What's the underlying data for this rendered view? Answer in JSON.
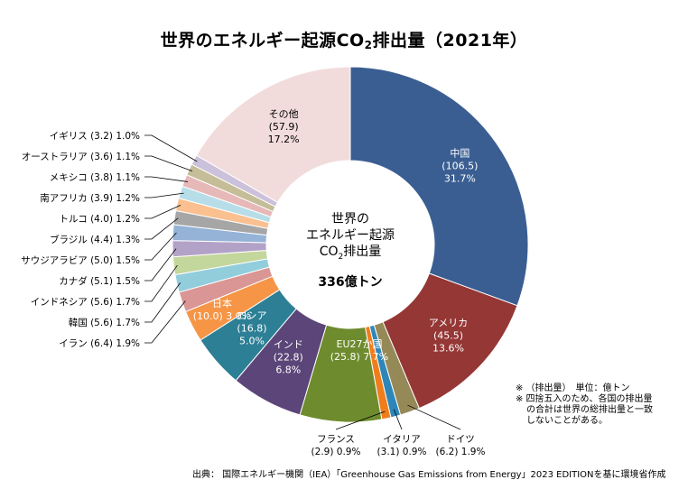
{
  "chart_data": {
    "type": "pie",
    "title_prefix": "世界のエネルギー起源CO",
    "title_sub": "2",
    "title_suffix": "排出量（2021年）",
    "center": {
      "line1": "世界の",
      "line2": "エネルギー起源",
      "line3_prefix": "CO",
      "line3_sub": "2",
      "line3_suffix": "排出量",
      "total": "336億トン"
    },
    "unit": "億トン",
    "slices": [
      {
        "name": "中国",
        "value": 106.5,
        "pct": "31.7%",
        "value_label": "(106.5)",
        "color": "#3a5e92"
      },
      {
        "name": "アメリカ",
        "value": 45.5,
        "pct": "13.6%",
        "value_label": "(45.5)",
        "color": "#953735"
      },
      {
        "name": "ドイツ",
        "value": 6.2,
        "pct": "1.9%",
        "value_label": "(6.2)",
        "color": "#958a57"
      },
      {
        "name": "イタリア",
        "value": 3.1,
        "pct": "0.9%",
        "value_label": "(3.1)",
        "color": "#2e86b8"
      },
      {
        "name": "フランス",
        "value": 2.9,
        "pct": "0.9%",
        "value_label": "(2.9)",
        "color": "#f07d1c"
      },
      {
        "name": "EU27か国",
        "value": 25.8,
        "pct": "7.7%",
        "value_label": "(25.8)",
        "color": "#6e8b2e"
      },
      {
        "name": "インド",
        "value": 22.8,
        "pct": "6.8%",
        "value_label": "(22.8)",
        "color": "#5c4578"
      },
      {
        "name": "ロシア",
        "value": 16.8,
        "pct": "5.0%",
        "value_label": "(16.8)",
        "color": "#2d7f95"
      },
      {
        "name": "日本",
        "value": 10.0,
        "pct": "3.0%",
        "value_label": "(10.0)",
        "color": "#f69546"
      },
      {
        "name": "イラン",
        "value": 6.4,
        "pct": "1.9%",
        "value_label": "(6.4)",
        "color": "#d99694"
      },
      {
        "name": "韓国",
        "value": 5.6,
        "pct": "1.7%",
        "value_label": "(5.6)",
        "color": "#92cddc"
      },
      {
        "name": "インドネシア",
        "value": 5.6,
        "pct": "1.7%",
        "value_label": "(5.6)",
        "color": "#c3d69b"
      },
      {
        "name": "カナダ",
        "value": 5.1,
        "pct": "1.5%",
        "value_label": "(5.1)",
        "color": "#b3a2c7"
      },
      {
        "name": "サウジアラビア",
        "value": 5.0,
        "pct": "1.5%",
        "value_label": "(5.0)",
        "color": "#95b3d7"
      },
      {
        "name": "ブラジル",
        "value": 4.4,
        "pct": "1.3%",
        "value_label": "(4.4)",
        "color": "#a6a6a6"
      },
      {
        "name": "トルコ",
        "value": 4.0,
        "pct": "1.2%",
        "value_label": "(4.0)",
        "color": "#fac090"
      },
      {
        "name": "南アフリカ",
        "value": 3.9,
        "pct": "1.2%",
        "value_label": "(3.9)",
        "color": "#b7dee8"
      },
      {
        "name": "メキシコ",
        "value": 3.8,
        "pct": "1.1%",
        "value_label": "(3.8)",
        "color": "#e6b9b8"
      },
      {
        "name": "オーストラリア",
        "value": 3.6,
        "pct": "1.1%",
        "value_label": "(3.6)",
        "color": "#c4bd97"
      },
      {
        "name": "イギリス",
        "value": 3.2,
        "pct": "1.0%",
        "value_label": "(3.2)",
        "color": "#ccc1da"
      },
      {
        "name": "その他",
        "value": 57.9,
        "pct": "17.2%",
        "value_label": "(57.9)",
        "color": "#f2dcdb"
      }
    ]
  },
  "notes": {
    "line1": "※ （排出量）　単位：億トン",
    "line2": "※ 四捨五入のため、各国の排出量",
    "line3": "の合計は世界の総排出量と一致",
    "line4": "しないことがある。"
  },
  "source": "出典： 国際エネルギー機関（IEA）「Greenhouse Gas Emissions from Energy」2023 EDITIONを基に環境省作成"
}
